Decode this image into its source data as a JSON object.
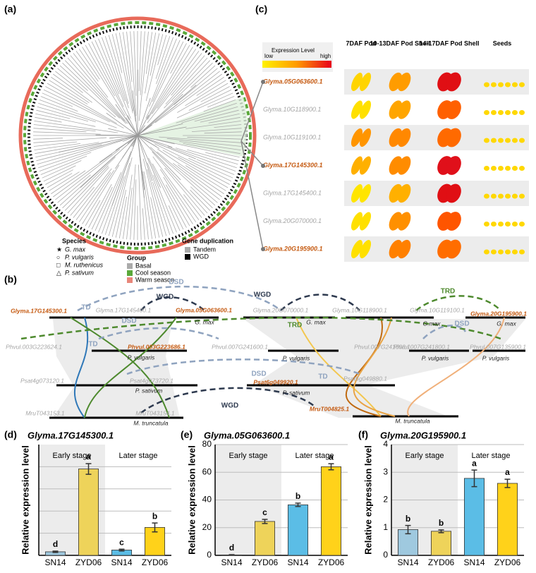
{
  "panel_labels": [
    "(a)",
    "(b)",
    "(c)",
    "(d)",
    "(e)",
    "(f)"
  ],
  "panel_a": {
    "species_title": "Species",
    "species": [
      "G. max",
      "P. vulgaris",
      "M. ruthenicus",
      "P. sativum"
    ],
    "group_title": "Group",
    "groups": [
      "Basal",
      "Cool season",
      "Warm season"
    ],
    "dup_title": "Gene duplication",
    "dups": [
      "Tandem",
      "WGD"
    ]
  },
  "panel_b": {
    "labels": [
      "DSD",
      "WGD",
      "WGD",
      "TRD",
      "Glyma.17G145300.1",
      "TD",
      "Glyma.17G145400.1",
      "Glyma.05G063600.1",
      "Glyma.20G070000.1",
      "Glyma.10G118900.1",
      "Glyma.10G119100.1",
      "Glyma.20G195900.1",
      "DSD",
      "G. max",
      "G. max",
      "TRD",
      "G.max",
      "DSD",
      "G. max",
      "Phvul.003G223624.1",
      "TD",
      "Phvul.003G223686.1",
      "Phvul.007G241600.1",
      "Phvul.007G241600.1",
      "Phvul.007G241800.1",
      "Phvul.007G135900.1",
      "P. vulgaris",
      "P. vulgaris",
      "P. vulgaris",
      "P. vulgaris",
      "DSD",
      "Psat4g073120.1",
      "Psat4g073720.1",
      "Psat6g049920.1",
      "TD",
      "Psat6g049880.1",
      "P. sativum",
      "P. sativum",
      "WGD",
      "MruT043153.1",
      "MruT043154.1",
      "MruT004825.1",
      "M. truncatula",
      "M. truncatula"
    ]
  },
  "panel_c": {
    "legend_title": "Expression Level",
    "low": "low",
    "high": "high",
    "columns": [
      "7DAF Pod",
      "10-13DAF Pod Shell",
      "14-17DAF Pod Shell",
      "Seeds"
    ],
    "genes": [
      "Glyma.05G063600.1",
      "Glyma.10G118900.1",
      "Glyma.10G119100.1",
      "Glyma.17G145300.1",
      "Glyma.17G145400.1",
      "Glyma.20G070000.1",
      "Glyma.20G195900.1"
    ]
  },
  "chart_data": [
    {
      "type": "bar",
      "title": "Glyma.17G145300.1",
      "y_label": "Relative expression level",
      "stages": [
        "Early stage",
        "Later stage"
      ],
      "categories": [
        "SN14",
        "ZYD06",
        "SN14",
        "ZYD06"
      ],
      "values": [
        0.8,
        19.5,
        1.2,
        6.3
      ],
      "errors": [
        0.15,
        1.2,
        0.2,
        1.0
      ],
      "annotations": [
        "d",
        "a",
        "c",
        "b"
      ],
      "colors": [
        "#9fc9df",
        "#eed35a",
        "#5bbde6",
        "#ffd21a"
      ],
      "ylim": [
        0,
        25
      ],
      "yticks": [
        5,
        10,
        15,
        20
      ],
      "show_tick_labels": false,
      "grid": true
    },
    {
      "type": "bar",
      "title": "Glyma.05G063600.1",
      "y_label": "Relative expression level",
      "stages": [
        "Early stage",
        "Later stage"
      ],
      "categories": [
        "SN14",
        "ZYD06",
        "SN14",
        "ZYD06"
      ],
      "values": [
        0.3,
        24.5,
        36.5,
        64
      ],
      "errors": [
        0.2,
        1.5,
        1.2,
        2.2
      ],
      "annotations": [
        "d",
        "c",
        "b",
        "a"
      ],
      "colors": [
        "#9fc9df",
        "#eed35a",
        "#5bbde6",
        "#ffd21a"
      ],
      "ylim": [
        0,
        80
      ],
      "yticks": [
        0,
        20,
        40,
        60,
        80
      ],
      "show_tick_labels": true,
      "grid": true
    },
    {
      "type": "bar",
      "title": "Glyma.20G195900.1",
      "y_label": "Relative expression level",
      "stages": [
        "Early stage",
        "Later stage"
      ],
      "categories": [
        "SN14",
        "ZYD06",
        "SN14",
        "ZYD06"
      ],
      "values": [
        0.93,
        0.87,
        2.78,
        2.6
      ],
      "errors": [
        0.15,
        0.05,
        0.3,
        0.15
      ],
      "annotations": [
        "b",
        "b",
        "a",
        "a"
      ],
      "colors": [
        "#9fc9df",
        "#eed35a",
        "#5bbde6",
        "#ffd21a"
      ],
      "ylim": [
        0,
        4
      ],
      "yticks": [
        0,
        1,
        2,
        3,
        4
      ],
      "show_tick_labels": true,
      "grid": true
    }
  ]
}
